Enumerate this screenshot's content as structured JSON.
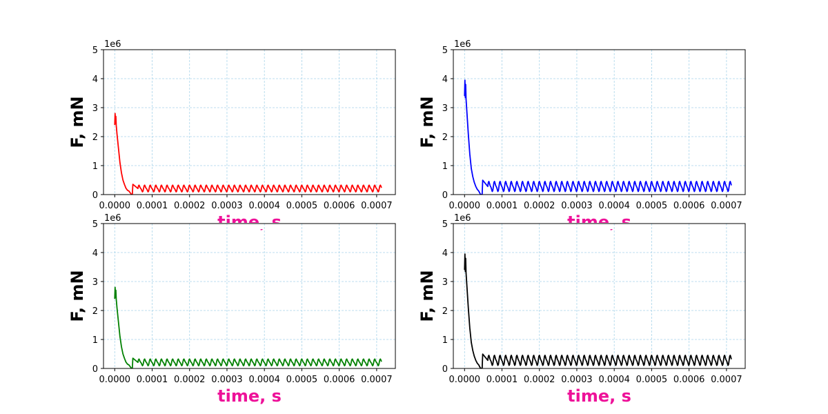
{
  "chart_data": [
    {
      "type": "line",
      "panel": "top-left",
      "xlabel": "time, s",
      "ylabel": "F, mN",
      "y_offset_label": "1e6",
      "xlim": [
        -3e-05,
        0.00075
      ],
      "ylim": [
        0,
        5
      ],
      "xticks": [
        "0.0000",
        "0.0001",
        "0.0002",
        "0.0003",
        "0.0004",
        "0.0005",
        "0.0006",
        "0.0007"
      ],
      "yticks": [
        "0",
        "1",
        "2",
        "3",
        "4",
        "5"
      ],
      "grid": true,
      "series": [
        {
          "color": "#ff0000",
          "x": [
            0,
            1e-06,
            2e-06,
            3e-06,
            4e-06,
            6e-06,
            1e-05,
            1.4e-05,
            1.8e-05,
            2.2e-05,
            2.6e-05,
            3e-05,
            3.4e-05,
            3.8e-05,
            4.2e-05,
            4.5e-05,
            4.7e-05
          ],
          "y": [
            2.4,
            2.8,
            2.45,
            2.7,
            2.4,
            2.1,
            1.6,
            1.1,
            0.75,
            0.5,
            0.35,
            0.22,
            0.15,
            0.12,
            0.05,
            0.0,
            0.0
          ],
          "oscillation": {
            "start": 4.7e-05,
            "end": 0.000714,
            "period": 1.5e-05,
            "mean": 0.21,
            "amplitude": 0.1,
            "first_peak": 0.37
          }
        }
      ]
    },
    {
      "type": "line",
      "panel": "top-right",
      "xlabel": "time, s",
      "ylabel": "F, mN",
      "y_offset_label": "1e6",
      "xlim": [
        -3e-05,
        0.00075
      ],
      "ylim": [
        0,
        5
      ],
      "xticks": [
        "0.0000",
        "0.0001",
        "0.0002",
        "0.0003",
        "0.0004",
        "0.0005",
        "0.0006",
        "0.0007"
      ],
      "yticks": [
        "0",
        "1",
        "2",
        "3",
        "4",
        "5"
      ],
      "grid": true,
      "series": [
        {
          "color": "#0000ff",
          "x": [
            0,
            1e-06,
            2e-06,
            3e-06,
            4e-06,
            6e-06,
            1e-05,
            1.4e-05,
            1.8e-05,
            2.2e-05,
            2.6e-05,
            3e-05,
            3.4e-05,
            3.8e-05,
            4.2e-05,
            4.5e-05,
            4.7e-05
          ],
          "y": [
            3.4,
            3.95,
            3.35,
            3.8,
            3.3,
            2.9,
            2.1,
            1.4,
            0.9,
            0.62,
            0.42,
            0.28,
            0.18,
            0.12,
            0.02,
            0.0,
            0.0
          ],
          "oscillation": {
            "start": 4.7e-05,
            "end": 0.000714,
            "period": 1.5e-05,
            "mean": 0.28,
            "amplitude": 0.15,
            "first_peak": 0.52
          }
        }
      ]
    },
    {
      "type": "line",
      "panel": "bottom-left",
      "xlabel": "time, s",
      "ylabel": "F, mN",
      "y_offset_label": "1e6",
      "xlim": [
        -3e-05,
        0.00075
      ],
      "ylim": [
        0,
        5
      ],
      "xticks": [
        "0.0000",
        "0.0001",
        "0.0002",
        "0.0003",
        "0.0004",
        "0.0005",
        "0.0006",
        "0.0007"
      ],
      "yticks": [
        "0",
        "1",
        "2",
        "3",
        "4",
        "5"
      ],
      "grid": true,
      "series": [
        {
          "color": "#008000",
          "x": [
            0,
            1e-06,
            2e-06,
            3e-06,
            4e-06,
            6e-06,
            1e-05,
            1.4e-05,
            1.8e-05,
            2.2e-05,
            2.6e-05,
            3e-05,
            3.4e-05,
            3.8e-05,
            4.2e-05,
            4.5e-05,
            4.7e-05
          ],
          "y": [
            2.4,
            2.8,
            2.45,
            2.7,
            2.4,
            2.1,
            1.6,
            1.1,
            0.75,
            0.5,
            0.35,
            0.22,
            0.15,
            0.12,
            0.05,
            0.0,
            0.0
          ],
          "oscillation": {
            "start": 4.7e-05,
            "end": 0.000714,
            "period": 1.5e-05,
            "mean": 0.21,
            "amplitude": 0.1,
            "first_peak": 0.37
          }
        }
      ]
    },
    {
      "type": "line",
      "panel": "bottom-right",
      "xlabel": "time, s",
      "ylabel": "F, mN",
      "y_offset_label": "1e6",
      "xlim": [
        -3e-05,
        0.00075
      ],
      "ylim": [
        0,
        5
      ],
      "xticks": [
        "0.0000",
        "0.0001",
        "0.0002",
        "0.0003",
        "0.0004",
        "0.0005",
        "0.0006",
        "0.0007"
      ],
      "yticks": [
        "0",
        "1",
        "2",
        "3",
        "4",
        "5"
      ],
      "grid": true,
      "series": [
        {
          "color": "#000000",
          "x": [
            0,
            1e-06,
            2e-06,
            3e-06,
            4e-06,
            6e-06,
            1e-05,
            1.4e-05,
            1.8e-05,
            2.2e-05,
            2.6e-05,
            3e-05,
            3.4e-05,
            3.8e-05,
            4.2e-05,
            4.5e-05,
            4.7e-05
          ],
          "y": [
            3.4,
            3.95,
            3.35,
            3.8,
            3.3,
            2.9,
            2.1,
            1.4,
            0.9,
            0.62,
            0.42,
            0.28,
            0.18,
            0.12,
            0.02,
            0.0,
            0.0
          ],
          "oscillation": {
            "start": 4.7e-05,
            "end": 0.000714,
            "period": 1.5e-05,
            "mean": 0.28,
            "amplitude": 0.15,
            "first_peak": 0.52
          }
        }
      ]
    }
  ],
  "colors": {
    "xlabel": "#ee1199",
    "grid": "#a8d4ea",
    "axes": "#000000"
  }
}
